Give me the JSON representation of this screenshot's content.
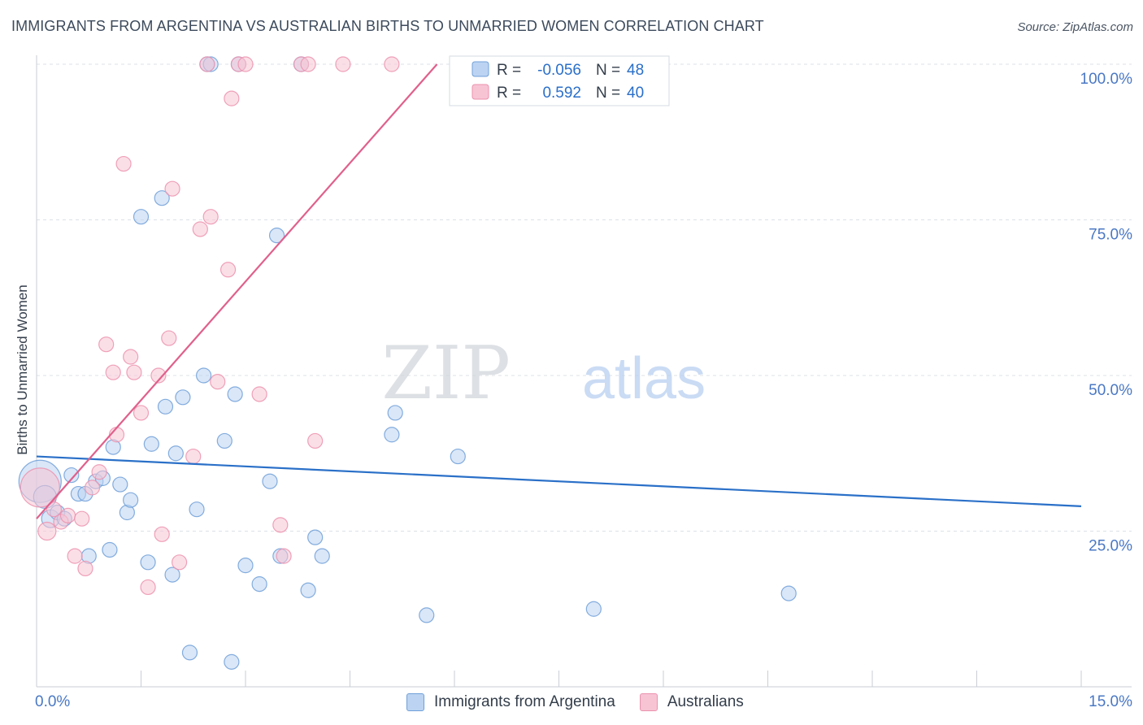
{
  "header": {
    "title": "IMMIGRANTS FROM ARGENTINA VS AUSTRALIAN BIRTHS TO UNMARRIED WOMEN CORRELATION CHART",
    "source": "Source: ZipAtlas.com"
  },
  "watermark": {
    "part1": "ZIP",
    "part2": "atlas"
  },
  "colors": {
    "blue": "#6f9fd8",
    "blue_fill": "#bcd4f2",
    "blue_line": "#2a70c8",
    "pink": "#ec92ae",
    "pink_fill": "#f7c4d4",
    "pink_line": "#e0608c",
    "tick_label": "#4a78c4"
  },
  "legend_box": {
    "rows": [
      {
        "r_label": "R =",
        "r_value": "-0.056",
        "n_label": "N =",
        "n_value": "48"
      },
      {
        "r_label": "R =",
        "r_value": "0.592",
        "n_label": "N =",
        "n_value": "40"
      }
    ]
  },
  "legend_bottom": {
    "items": [
      {
        "label": "Immigrants from Argentina"
      },
      {
        "label": "Australians"
      }
    ]
  },
  "chart_data": {
    "type": "scatter",
    "title": "IMMIGRANTS FROM ARGENTINA VS AUSTRALIAN BIRTHS TO UNMARRIED WOMEN CORRELATION CHART",
    "xlabel": "",
    "ylabel": "Births to Unmarried Women",
    "xlim": [
      0,
      15
    ],
    "ylim": [
      0,
      100
    ],
    "x_tick_labels": [
      {
        "value": 0,
        "label": "0.0%"
      },
      {
        "value": 15,
        "label": "15.0%"
      }
    ],
    "y_tick_labels": [
      {
        "value": 25,
        "label": "25.0%"
      },
      {
        "value": 50,
        "label": "50.0%"
      },
      {
        "value": 75,
        "label": "75.0%"
      },
      {
        "value": 100,
        "label": "100.0%"
      }
    ],
    "grid": "horizontal dashed",
    "legend_placement": "top-center",
    "series": [
      {
        "name": "Immigrants from Argentina",
        "r": -0.056,
        "n": 48,
        "trend": {
          "x": [
            0,
            15
          ],
          "y": [
            37.0,
            29.0
          ]
        },
        "points": [
          [
            0.05,
            33.0,
            26
          ],
          [
            0.12,
            30.5,
            14
          ],
          [
            0.2,
            27.0,
            11
          ],
          [
            0.3,
            28.0,
            9
          ],
          [
            0.4,
            27.0,
            9
          ],
          [
            0.5,
            34.0,
            9
          ],
          [
            0.6,
            31.0,
            9
          ],
          [
            0.7,
            31.0,
            9
          ],
          [
            0.75,
            21.0,
            9
          ],
          [
            0.85,
            33.0,
            9
          ],
          [
            0.95,
            33.5,
            9
          ],
          [
            1.05,
            22.0,
            9
          ],
          [
            1.1,
            38.5,
            9
          ],
          [
            1.2,
            32.5,
            9
          ],
          [
            1.3,
            28.0,
            9
          ],
          [
            1.35,
            30.0,
            9
          ],
          [
            1.5,
            75.5,
            9
          ],
          [
            1.6,
            20.0,
            9
          ],
          [
            1.65,
            39.0,
            9
          ],
          [
            1.8,
            78.5,
            9
          ],
          [
            1.85,
            45.0,
            9
          ],
          [
            1.95,
            18.0,
            9
          ],
          [
            2.0,
            37.5,
            9
          ],
          [
            2.1,
            46.5,
            9
          ],
          [
            2.2,
            5.5,
            9
          ],
          [
            2.3,
            28.5,
            9
          ],
          [
            2.4,
            50.0,
            9
          ],
          [
            2.45,
            100.0,
            9
          ],
          [
            2.5,
            100.0,
            9
          ],
          [
            2.7,
            39.5,
            9
          ],
          [
            2.8,
            4.0,
            9
          ],
          [
            2.85,
            47.0,
            9
          ],
          [
            2.9,
            100.0,
            9
          ],
          [
            3.0,
            19.5,
            9
          ],
          [
            3.2,
            16.5,
            9
          ],
          [
            3.35,
            33.0,
            9
          ],
          [
            3.45,
            72.5,
            9
          ],
          [
            3.5,
            21.0,
            9
          ],
          [
            3.8,
            100.0,
            9
          ],
          [
            3.9,
            15.5,
            9
          ],
          [
            4.0,
            24.0,
            9
          ],
          [
            4.1,
            21.0,
            9
          ],
          [
            5.1,
            40.5,
            9
          ],
          [
            5.15,
            44.0,
            9
          ],
          [
            5.6,
            11.5,
            9
          ],
          [
            6.05,
            37.0,
            9
          ],
          [
            8.0,
            12.5,
            9
          ],
          [
            10.8,
            15.0,
            9
          ]
        ]
      },
      {
        "name": "Australians",
        "r": 0.592,
        "n": 40,
        "trend": {
          "x": [
            0,
            5.75
          ],
          "y": [
            27.0,
            100.0
          ]
        },
        "points": [
          [
            0.05,
            32.0,
            24
          ],
          [
            0.15,
            25.0,
            11
          ],
          [
            0.25,
            28.5,
            9
          ],
          [
            0.35,
            26.5,
            9
          ],
          [
            0.45,
            27.5,
            9
          ],
          [
            0.55,
            21.0,
            9
          ],
          [
            0.65,
            27.0,
            9
          ],
          [
            0.7,
            19.0,
            9
          ],
          [
            0.8,
            32.0,
            9
          ],
          [
            0.9,
            34.5,
            9
          ],
          [
            1.0,
            55.0,
            9
          ],
          [
            1.1,
            50.5,
            9
          ],
          [
            1.15,
            40.5,
            9
          ],
          [
            1.25,
            84.0,
            9
          ],
          [
            1.35,
            53.0,
            9
          ],
          [
            1.4,
            50.5,
            9
          ],
          [
            1.5,
            44.0,
            9
          ],
          [
            1.6,
            16.0,
            9
          ],
          [
            1.75,
            50.0,
            9
          ],
          [
            1.8,
            24.5,
            9
          ],
          [
            1.9,
            56.0,
            9
          ],
          [
            1.95,
            80.0,
            9
          ],
          [
            2.05,
            20.0,
            9
          ],
          [
            2.25,
            37.0,
            9
          ],
          [
            2.35,
            73.5,
            9
          ],
          [
            2.45,
            100.0,
            9
          ],
          [
            2.5,
            75.5,
            9
          ],
          [
            2.6,
            49.0,
            9
          ],
          [
            2.75,
            67.0,
            9
          ],
          [
            2.8,
            94.5,
            9
          ],
          [
            2.9,
            100.0,
            9
          ],
          [
            3.0,
            100.0,
            9
          ],
          [
            3.2,
            47.0,
            9
          ],
          [
            3.5,
            26.0,
            9
          ],
          [
            3.55,
            21.0,
            9
          ],
          [
            3.8,
            100.0,
            9
          ],
          [
            3.9,
            100.0,
            9
          ],
          [
            4.0,
            39.5,
            9
          ],
          [
            4.4,
            100.0,
            9
          ],
          [
            5.1,
            100.0,
            9
          ]
        ]
      }
    ]
  }
}
